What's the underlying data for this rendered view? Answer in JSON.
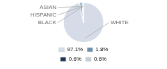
{
  "chart_data": {
    "type": "pie",
    "categories": [
      "WHITE",
      "ASIAN",
      "HISPANIC",
      "BLACK"
    ],
    "values": [
      97.1,
      1.8,
      0.6,
      0.6
    ],
    "value_labels": [
      "97.1%",
      "1.8%",
      "0.6%",
      "0.6%"
    ],
    "colors": [
      "#d5dce8",
      "#6b8fad",
      "#1e3557",
      "#c5cfd9"
    ],
    "legend": "bottom"
  }
}
